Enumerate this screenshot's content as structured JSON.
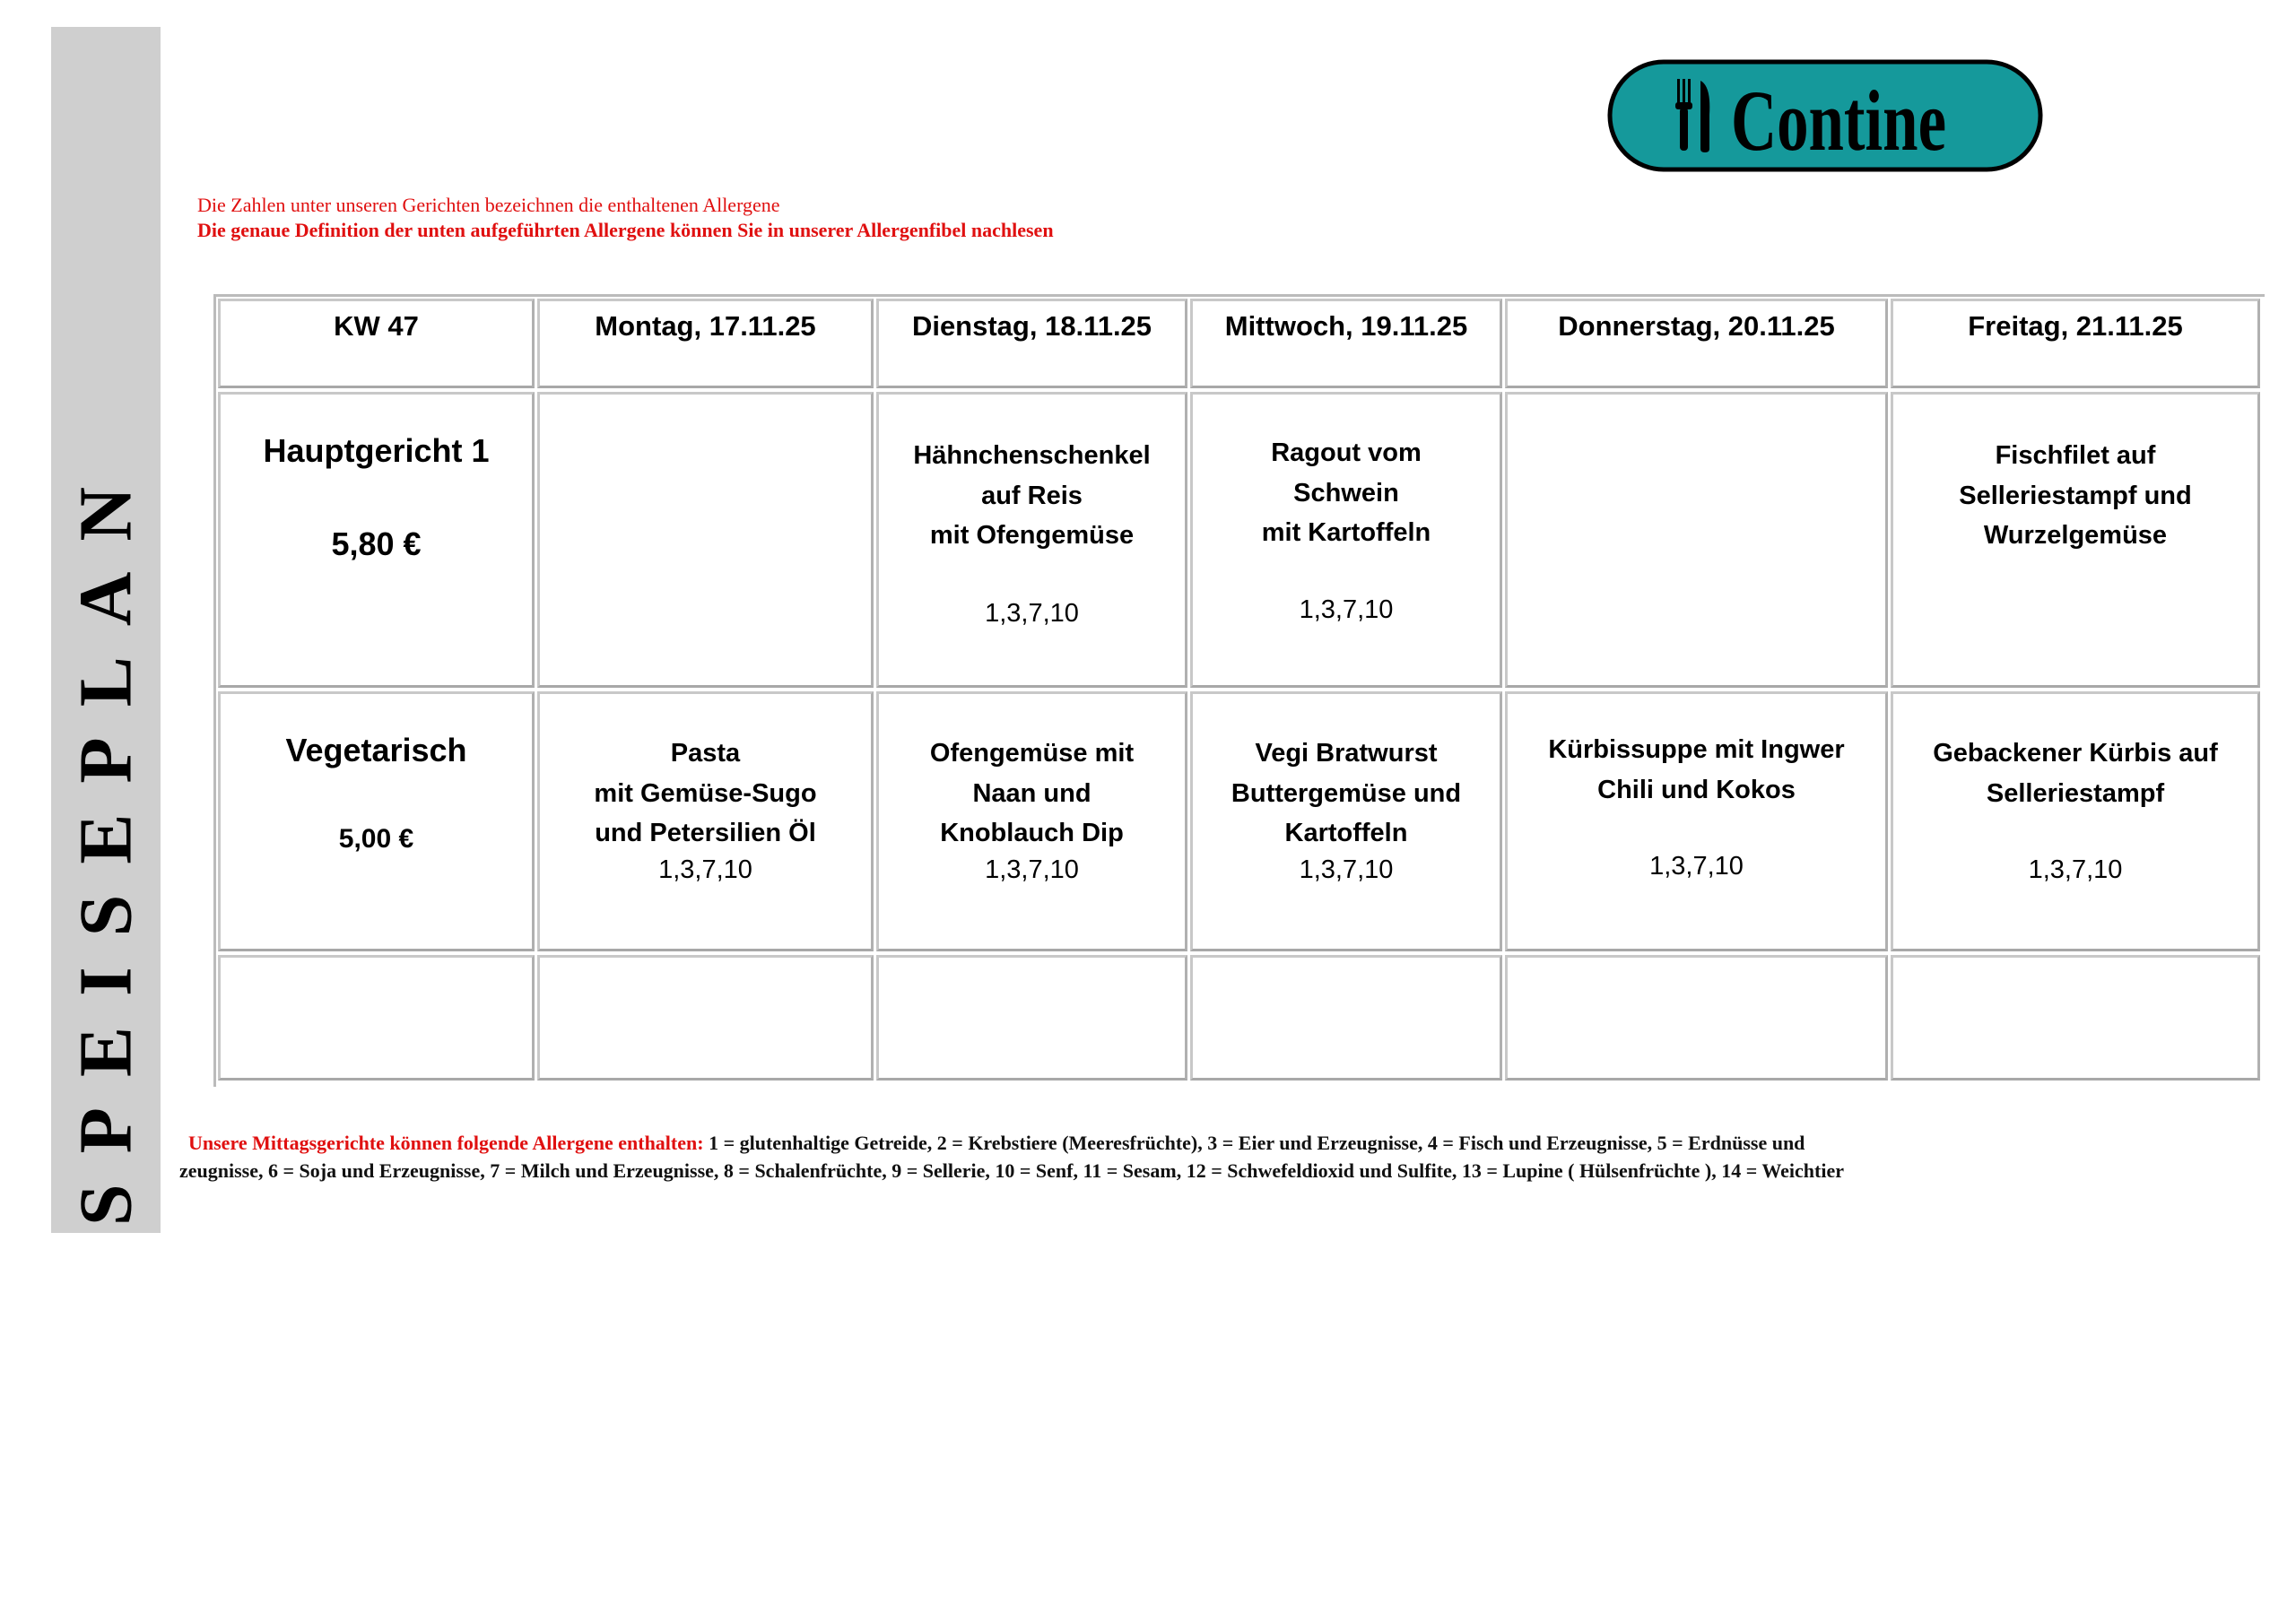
{
  "sidebar_title": "SPEISEPLAN",
  "logo": {
    "text": "Contine",
    "color": "#15999b",
    "icon": "fork-knife-icon"
  },
  "notes": [
    "Die Zahlen unter unseren Gerichten bezeichnen die enthaltenen Allergene",
    "Die genaue Definition der unten aufgeführten Allergene können Sie in unserer Allergenfibel nachlesen"
  ],
  "table": {
    "week": "KW 47",
    "days": [
      "Montag, 17.11.25",
      "Dienstag, 18.11.25",
      "Mittwoch, 19.11.25",
      "Donnerstag, 20.11.25",
      "Freitag, 21.11.25"
    ],
    "rows": [
      {
        "label": "Hauptgericht 1",
        "price": "5,80 €",
        "dishes": [
          {
            "name": "",
            "allergens": ""
          },
          {
            "name": "Hähnchenschenkel\nauf Reis\nmit Ofengemüse",
            "allergens": "1,3,7,10"
          },
          {
            "name": "Ragout vom\nSchwein\nmit Kartoffeln",
            "allergens": "1,3,7,10"
          },
          {
            "name": "",
            "allergens": ""
          },
          {
            "name": "Fischfilet auf\nSelleriestampf und\nWurzelgemüse",
            "allergens": ""
          }
        ]
      },
      {
        "label": "Vegetarisch",
        "price": "5,00 €",
        "dishes": [
          {
            "name": "Pasta\nmit Gemüse-Sugo\nund Petersilien Öl",
            "allergens": "1,3,7,10"
          },
          {
            "name": "Ofengemüse mit\nNaan und\nKnoblauch Dip",
            "allergens": "1,3,7,10"
          },
          {
            "name": "Vegi Bratwurst\nButtergemüse und\nKartoffeln",
            "allergens": "1,3,7,10"
          },
          {
            "name": "Kürbissuppe mit Ingwer\nChili und Kokos",
            "allergens": "1,3,7,10"
          },
          {
            "name": "Gebackener Kürbis auf\nSelleriestampf",
            "allergens": "1,3,7,10"
          }
        ]
      }
    ]
  },
  "footer": {
    "lead": "Unsere Mittagsgerichte können folgende Allergene enthalten",
    "colon": ":",
    "line1": " 1 = glutenhaltige Getreide, 2 = Krebstiere (Meeresfrüchte), 3 = Eier und Erzeugnisse, 4 = Fisch und Erzeugnisse, 5 = Erdnüsse und",
    "line2": "zeugnisse, 6 = Soja und Erzeugnisse, 7 = Milch und Erzeugnisse, 8 = Schalenfrüchte, 9 = Sellerie, 10 = Senf, 11 = Sesam, 12 = Schwefeldioxid und Sulfite, 13 = Lupine ( Hülsenfrüchte ), 14 = Weichtier"
  }
}
